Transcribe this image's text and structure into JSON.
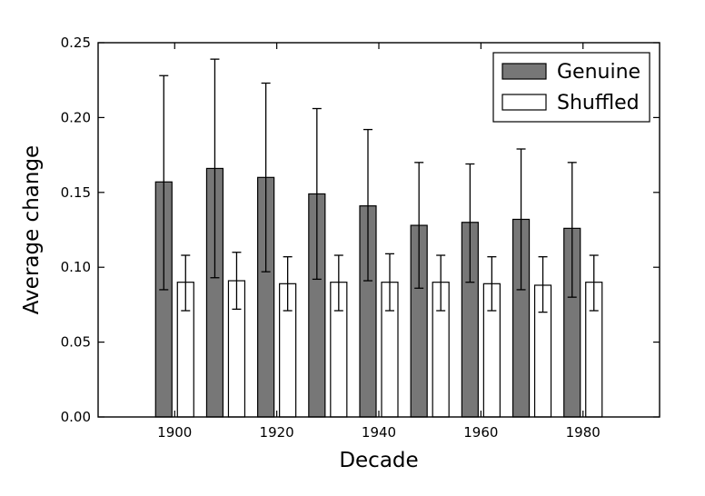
{
  "chart_data": {
    "type": "bar",
    "title": "",
    "xlabel": "Decade",
    "ylabel": "Average change",
    "ylim": [
      0,
      0.25
    ],
    "yticks": [
      "0.00",
      "0.05",
      "0.10",
      "0.15",
      "0.20",
      "0.25"
    ],
    "categories": [
      "1900",
      "1910",
      "1920",
      "1930",
      "1940",
      "1950",
      "1960",
      "1970",
      "1980"
    ],
    "xtick_labels": [
      "1900",
      "1920",
      "1940",
      "1960",
      "1980"
    ],
    "legend_position": "top-right",
    "grid": false,
    "series": [
      {
        "name": "Genuine",
        "color": "#777777",
        "values": [
          0.157,
          0.166,
          0.16,
          0.149,
          0.141,
          0.128,
          0.13,
          0.132,
          0.126
        ],
        "error_low": [
          0.085,
          0.093,
          0.097,
          0.092,
          0.091,
          0.086,
          0.09,
          0.085,
          0.08
        ],
        "error_high": [
          0.228,
          0.239,
          0.223,
          0.206,
          0.192,
          0.17,
          0.169,
          0.179,
          0.17
        ]
      },
      {
        "name": "Shuffled",
        "color": "#ffffff",
        "values": [
          0.09,
          0.091,
          0.089,
          0.09,
          0.09,
          0.09,
          0.089,
          0.088,
          0.09
        ],
        "error_low": [
          0.071,
          0.072,
          0.071,
          0.071,
          0.071,
          0.071,
          0.071,
          0.07,
          0.071
        ],
        "error_high": [
          0.108,
          0.11,
          0.107,
          0.108,
          0.109,
          0.108,
          0.107,
          0.107,
          0.108
        ]
      }
    ]
  }
}
